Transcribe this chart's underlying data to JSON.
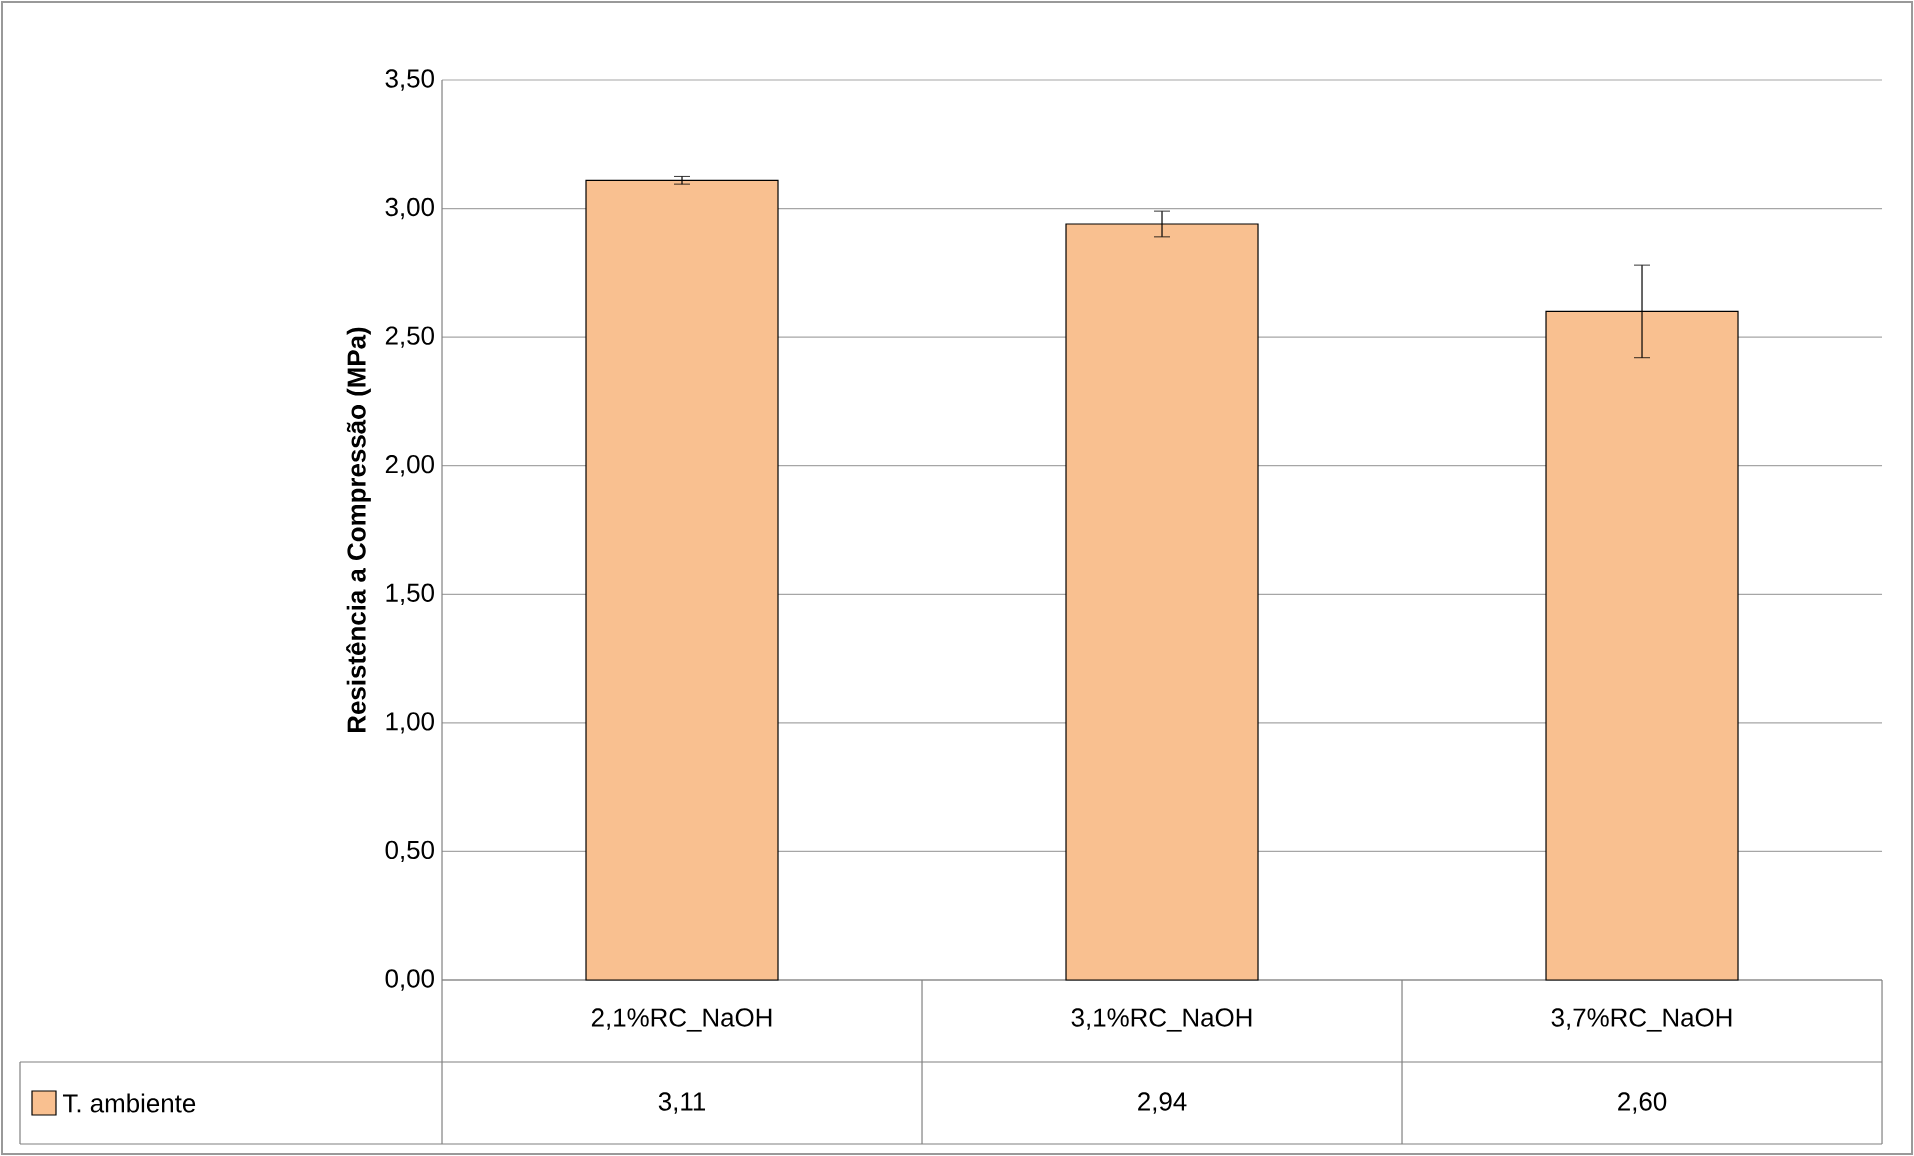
{
  "chart_data": {
    "type": "bar",
    "ylabel": "Resistência a Compressão (MPa)",
    "categories": [
      "2,1%RC_NaOH",
      "3,1%RC_NaOH",
      "3,7%RC_NaOH"
    ],
    "series": [
      {
        "name": "T. ambiente",
        "color": "#f9c090",
        "values": [
          3.11,
          2.94,
          2.6
        ],
        "errors": [
          0.015,
          0.05,
          0.18
        ],
        "value_labels": [
          "3,11",
          "2,94",
          "2,60"
        ]
      }
    ],
    "ylim": [
      0,
      3.5
    ],
    "yticks": [
      {
        "value": 0,
        "label": "0,00"
      },
      {
        "value": 0.5,
        "label": "0,50"
      },
      {
        "value": 1,
        "label": "1,00"
      },
      {
        "value": 1.5,
        "label": "1,50"
      },
      {
        "value": 2,
        "label": "2,00"
      },
      {
        "value": 2.5,
        "label": "2,50"
      },
      {
        "value": 3,
        "label": "3,00"
      },
      {
        "value": 3.5,
        "label": "3,50"
      }
    ],
    "grid": "y",
    "legend": "bottom"
  }
}
